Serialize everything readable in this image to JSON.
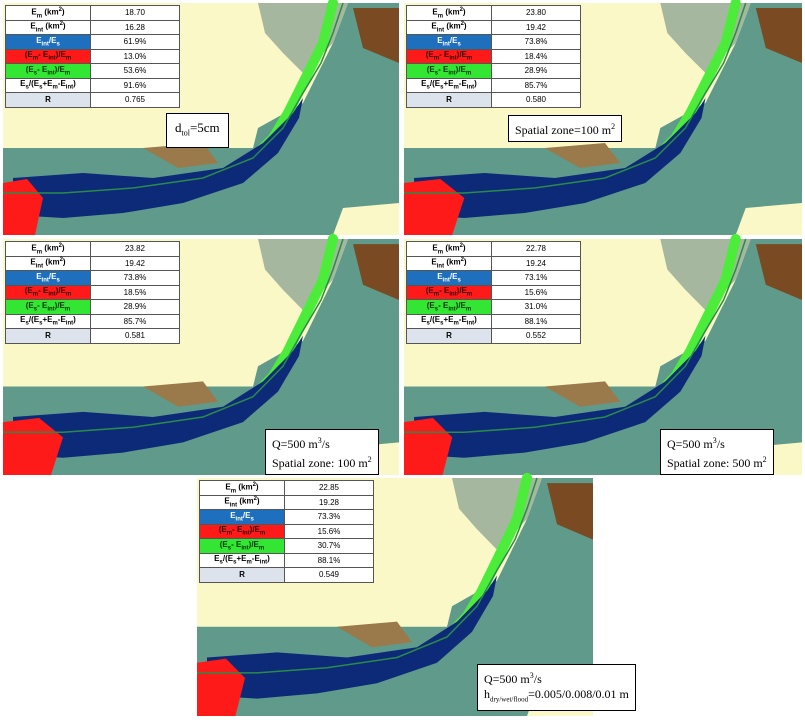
{
  "stat_labels": {
    "em": "Em (km2)",
    "eint": "Eint (km2)",
    "eint_es": "Eint/Es",
    "em_eint_em": "(Em-Eint)/Em",
    "es_eint_em": "(Es-Eint)/Em",
    "es_ratio": "Es/(Es+Em-Eint)",
    "r": "R"
  },
  "panels": [
    {
      "id": "p1",
      "values": [
        "18.70",
        "16.28",
        "61.9%",
        "13.0%",
        "53.6%",
        "91.6%",
        "0.765"
      ],
      "label_lines": [
        "dtol=5cm"
      ]
    },
    {
      "id": "p2",
      "values": [
        "23.80",
        "19.42",
        "73.8%",
        "18.4%",
        "28.9%",
        "85.7%",
        "0.580"
      ],
      "label_lines": [
        "Spatial zone=100 m2"
      ]
    },
    {
      "id": "p3",
      "values": [
        "23.82",
        "19.42",
        "73.8%",
        "18.5%",
        "28.9%",
        "85.7%",
        "0.581"
      ],
      "label_lines": [
        "Q=500 m3/s",
        "Spatial zone: 100 m2"
      ]
    },
    {
      "id": "p4",
      "values": [
        "22.78",
        "19.24",
        "73.1%",
        "15.6%",
        "31.0%",
        "88.1%",
        "0.552"
      ],
      "label_lines": [
        "Q=500 m3/s",
        "Spatial zone: 500 m2"
      ]
    },
    {
      "id": "p5",
      "values": [
        "22.85",
        "19.28",
        "73.3%",
        "15.6%",
        "30.7%",
        "88.1%",
        "0.549"
      ],
      "label_lines": [
        "Q=500 m3/s",
        "hdry/wet/flood=0.005/0.008/0.01 m"
      ]
    }
  ],
  "colors": {
    "background": "#fbf8c7",
    "intersection": "#0d2a78",
    "model_only": "#ff1a1a",
    "observed_only": "#4ced3a",
    "terrain_low": "#5f9a8a",
    "terrain_high": "#7a4a22"
  }
}
